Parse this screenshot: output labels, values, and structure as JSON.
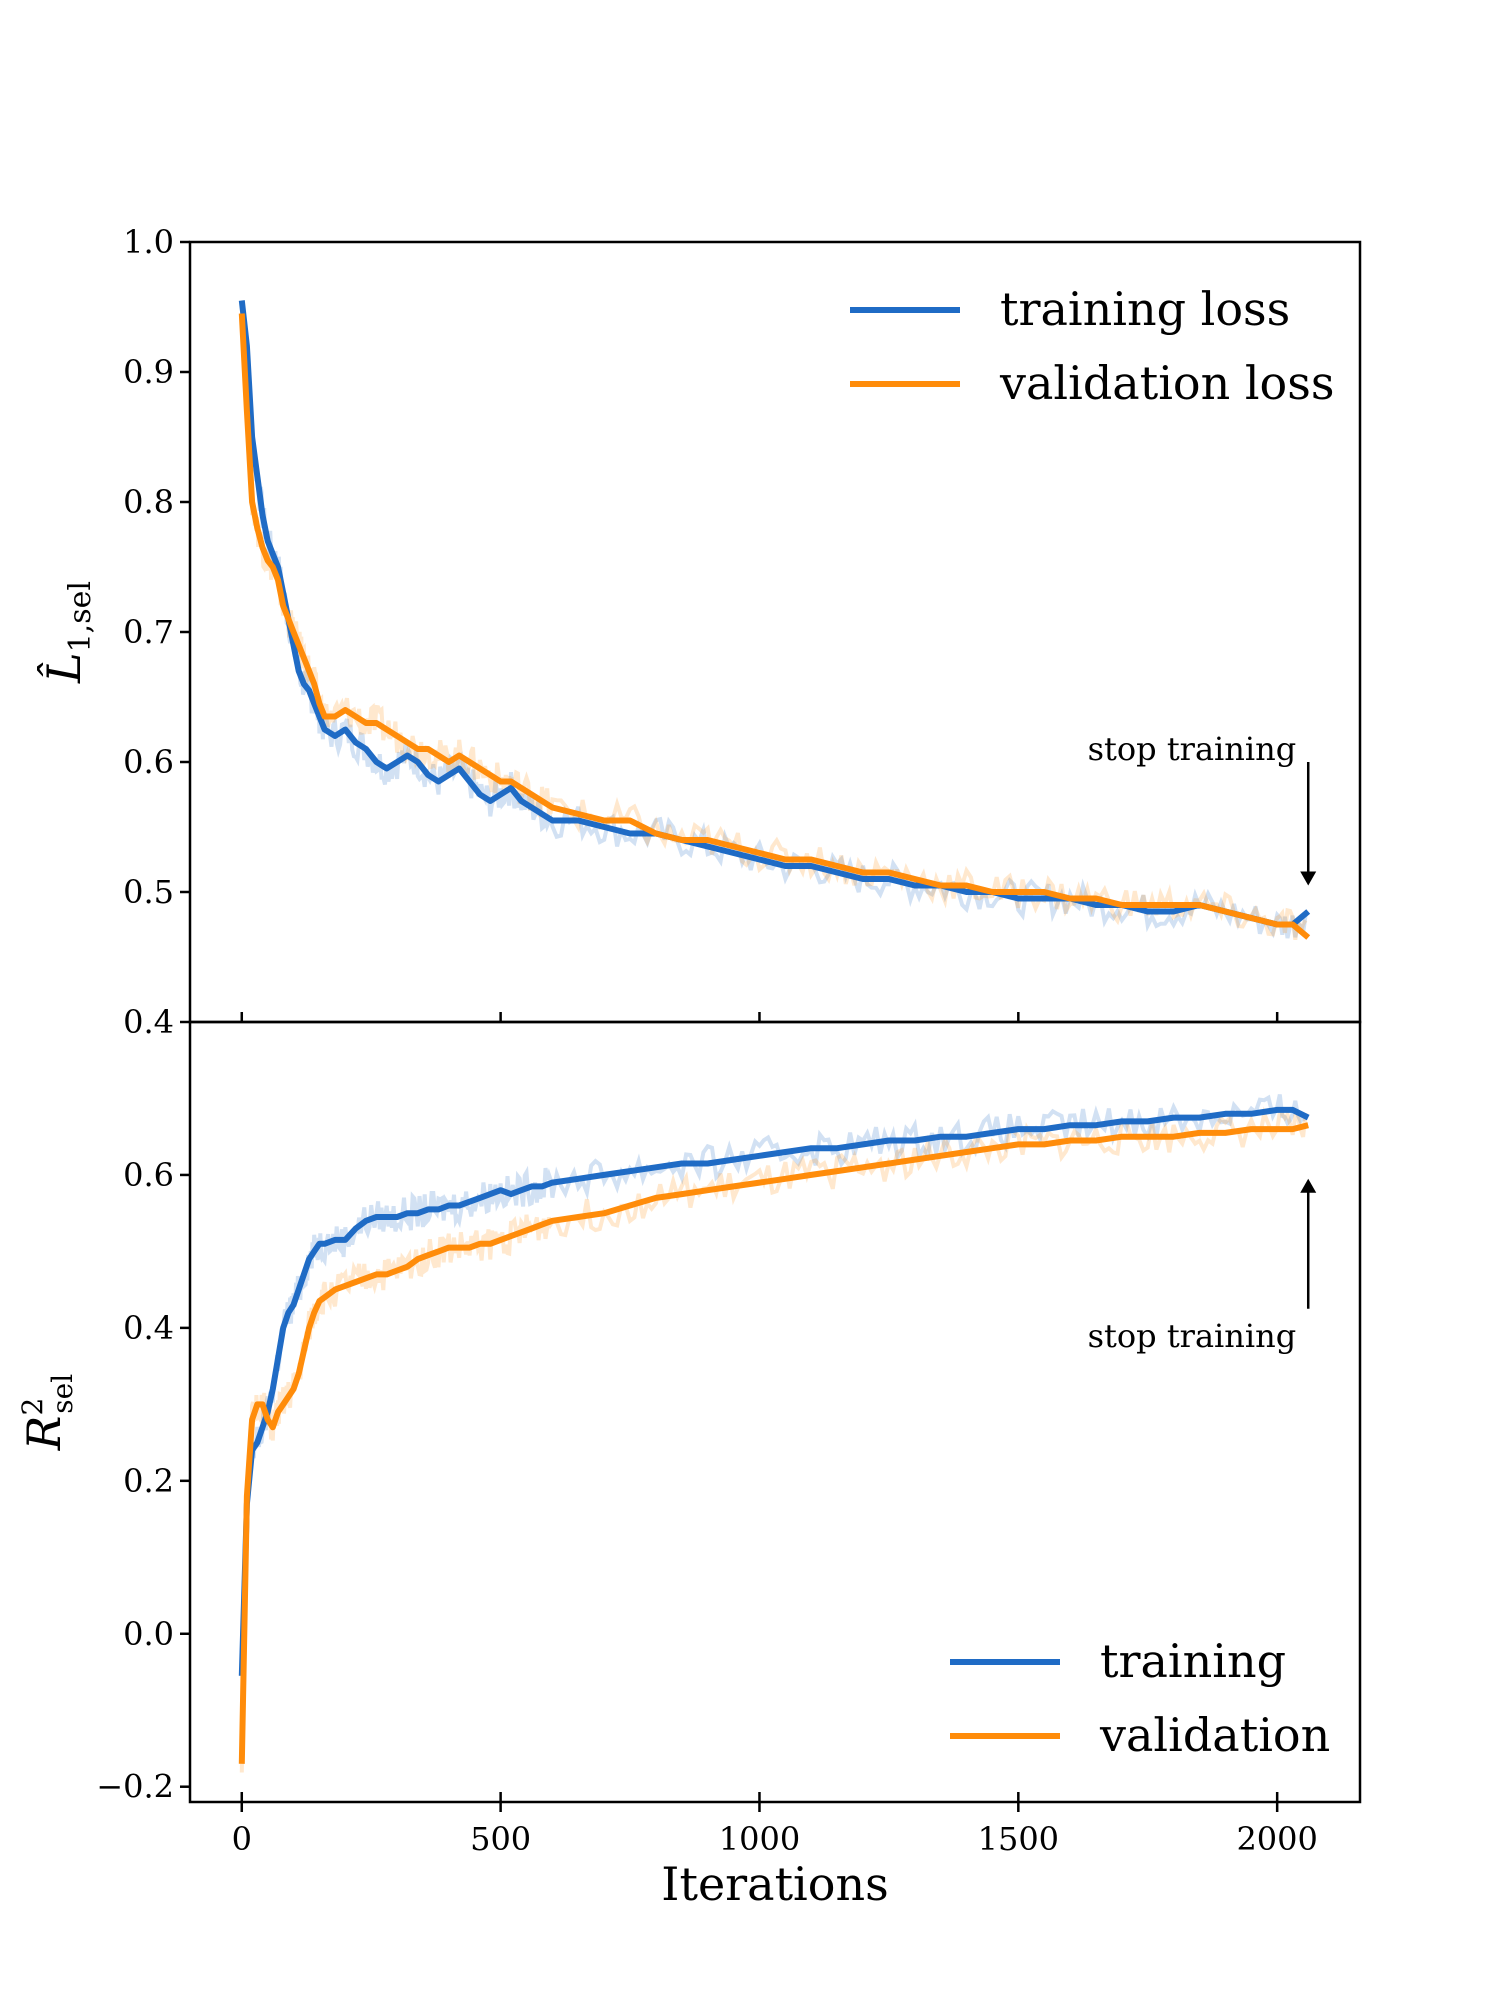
{
  "chart_data": [
    {
      "type": "line",
      "panel": "top",
      "ylabel_main": "L̂",
      "ylabel_sub": "1,sel",
      "xlabel": "",
      "xlim": [
        -100,
        2160
      ],
      "ylim": [
        0.4,
        1.0
      ],
      "yticks": [
        0.4,
        0.5,
        0.6,
        0.7,
        0.8,
        0.9,
        1.0
      ],
      "ytick_labels": [
        "0.4",
        "0.5",
        "0.6",
        "0.7",
        "0.8",
        "0.9",
        "1.0"
      ],
      "xticks": [
        0,
        500,
        1000,
        1500,
        2000
      ],
      "legend_position": "top-right",
      "annotation": {
        "text": "stop training",
        "x": 2060,
        "y_from": 0.6,
        "y_to": 0.505,
        "direction": "down"
      },
      "series": [
        {
          "name": "training loss",
          "color": "#1f6bc5",
          "x": [
            0,
            10,
            20,
            30,
            40,
            50,
            60,
            70,
            80,
            90,
            100,
            110,
            120,
            130,
            140,
            150,
            160,
            180,
            200,
            220,
            240,
            260,
            280,
            300,
            320,
            340,
            360,
            380,
            400,
            420,
            440,
            460,
            480,
            500,
            520,
            540,
            560,
            580,
            600,
            650,
            700,
            750,
            800,
            850,
            900,
            950,
            1000,
            1050,
            1100,
            1150,
            1200,
            1250,
            1300,
            1350,
            1400,
            1450,
            1500,
            1550,
            1600,
            1650,
            1700,
            1750,
            1800,
            1850,
            1900,
            1950,
            2000,
            2030,
            2060
          ],
          "values": [
            0.955,
            0.92,
            0.85,
            0.82,
            0.79,
            0.77,
            0.76,
            0.75,
            0.73,
            0.71,
            0.69,
            0.67,
            0.66,
            0.655,
            0.645,
            0.635,
            0.625,
            0.62,
            0.625,
            0.615,
            0.61,
            0.6,
            0.595,
            0.6,
            0.605,
            0.6,
            0.59,
            0.585,
            0.59,
            0.595,
            0.585,
            0.575,
            0.57,
            0.575,
            0.58,
            0.57,
            0.565,
            0.56,
            0.555,
            0.555,
            0.55,
            0.545,
            0.545,
            0.54,
            0.535,
            0.53,
            0.525,
            0.52,
            0.52,
            0.515,
            0.51,
            0.51,
            0.505,
            0.505,
            0.5,
            0.5,
            0.495,
            0.495,
            0.495,
            0.49,
            0.49,
            0.485,
            0.485,
            0.49,
            0.485,
            0.48,
            0.475,
            0.475,
            0.485
          ]
        },
        {
          "name": "validation loss",
          "color": "#ff8c0a",
          "x": [
            0,
            10,
            20,
            30,
            40,
            50,
            60,
            70,
            80,
            90,
            100,
            110,
            120,
            130,
            140,
            150,
            160,
            180,
            200,
            220,
            240,
            260,
            280,
            300,
            320,
            340,
            360,
            380,
            400,
            420,
            440,
            460,
            480,
            500,
            520,
            540,
            560,
            580,
            600,
            650,
            700,
            750,
            800,
            850,
            900,
            950,
            1000,
            1050,
            1100,
            1150,
            1200,
            1250,
            1300,
            1350,
            1400,
            1450,
            1500,
            1550,
            1600,
            1650,
            1700,
            1750,
            1800,
            1850,
            1900,
            1950,
            2000,
            2030,
            2060
          ],
          "values": [
            0.945,
            0.87,
            0.8,
            0.78,
            0.765,
            0.755,
            0.75,
            0.74,
            0.72,
            0.71,
            0.7,
            0.69,
            0.68,
            0.67,
            0.66,
            0.645,
            0.635,
            0.635,
            0.64,
            0.635,
            0.63,
            0.63,
            0.625,
            0.62,
            0.615,
            0.61,
            0.61,
            0.605,
            0.6,
            0.605,
            0.6,
            0.595,
            0.59,
            0.585,
            0.585,
            0.58,
            0.575,
            0.57,
            0.565,
            0.56,
            0.555,
            0.555,
            0.545,
            0.54,
            0.54,
            0.535,
            0.53,
            0.525,
            0.525,
            0.52,
            0.515,
            0.515,
            0.51,
            0.505,
            0.505,
            0.5,
            0.5,
            0.5,
            0.495,
            0.495,
            0.49,
            0.49,
            0.49,
            0.49,
            0.485,
            0.48,
            0.475,
            0.475,
            0.465
          ]
        }
      ]
    },
    {
      "type": "line",
      "panel": "bottom",
      "ylabel_main": "R",
      "ylabel_sup": "2",
      "ylabel_sub": "sel",
      "xlabel": "Iterations",
      "xlim": [
        -100,
        2160
      ],
      "ylim": [
        -0.22,
        0.8
      ],
      "yticks": [
        -0.2,
        0.0,
        0.2,
        0.4,
        0.6
      ],
      "ytick_labels": [
        "−0.2",
        "0.0",
        "0.2",
        "0.4",
        "0.6"
      ],
      "xticks": [
        0,
        500,
        1000,
        1500,
        2000
      ],
      "xtick_labels": [
        "0",
        "500",
        "1000",
        "1500",
        "2000"
      ],
      "legend_position": "bottom-right",
      "annotation": {
        "text": "stop training",
        "x": 2060,
        "y_from": 0.425,
        "y_to": 0.595,
        "direction": "up"
      },
      "series": [
        {
          "name": "training",
          "color": "#1f6bc5",
          "x": [
            0,
            10,
            20,
            30,
            40,
            50,
            60,
            70,
            80,
            90,
            100,
            110,
            120,
            130,
            140,
            150,
            160,
            180,
            200,
            220,
            240,
            260,
            280,
            300,
            320,
            340,
            360,
            380,
            400,
            420,
            440,
            460,
            480,
            500,
            520,
            540,
            560,
            580,
            600,
            650,
            700,
            750,
            800,
            850,
            900,
            950,
            1000,
            1050,
            1100,
            1150,
            1200,
            1250,
            1300,
            1350,
            1400,
            1450,
            1500,
            1550,
            1600,
            1650,
            1700,
            1750,
            1800,
            1850,
            1900,
            1950,
            2000,
            2030,
            2060
          ],
          "values": [
            -0.055,
            0.17,
            0.24,
            0.25,
            0.27,
            0.29,
            0.32,
            0.36,
            0.4,
            0.42,
            0.43,
            0.45,
            0.47,
            0.49,
            0.5,
            0.51,
            0.51,
            0.515,
            0.515,
            0.53,
            0.54,
            0.545,
            0.545,
            0.545,
            0.55,
            0.55,
            0.555,
            0.555,
            0.56,
            0.56,
            0.565,
            0.57,
            0.575,
            0.58,
            0.575,
            0.58,
            0.585,
            0.585,
            0.59,
            0.595,
            0.6,
            0.605,
            0.61,
            0.615,
            0.615,
            0.62,
            0.625,
            0.63,
            0.635,
            0.635,
            0.64,
            0.645,
            0.645,
            0.65,
            0.65,
            0.655,
            0.66,
            0.66,
            0.665,
            0.665,
            0.67,
            0.67,
            0.675,
            0.675,
            0.68,
            0.68,
            0.685,
            0.685,
            0.675
          ]
        },
        {
          "name": "validation",
          "color": "#ff8c0a",
          "x": [
            0,
            10,
            20,
            30,
            40,
            50,
            60,
            70,
            80,
            90,
            100,
            110,
            120,
            130,
            140,
            150,
            160,
            180,
            200,
            220,
            240,
            260,
            280,
            300,
            320,
            340,
            360,
            380,
            400,
            420,
            440,
            460,
            480,
            500,
            520,
            540,
            560,
            580,
            600,
            650,
            700,
            750,
            800,
            850,
            900,
            950,
            1000,
            1050,
            1100,
            1150,
            1200,
            1250,
            1300,
            1350,
            1400,
            1450,
            1500,
            1550,
            1600,
            1650,
            1700,
            1750,
            1800,
            1850,
            1900,
            1950,
            2000,
            2030,
            2060
          ],
          "values": [
            -0.17,
            0.18,
            0.28,
            0.3,
            0.3,
            0.28,
            0.27,
            0.29,
            0.3,
            0.31,
            0.32,
            0.34,
            0.37,
            0.4,
            0.42,
            0.435,
            0.44,
            0.45,
            0.455,
            0.46,
            0.465,
            0.47,
            0.47,
            0.475,
            0.48,
            0.49,
            0.495,
            0.5,
            0.505,
            0.505,
            0.505,
            0.51,
            0.51,
            0.515,
            0.52,
            0.525,
            0.53,
            0.535,
            0.54,
            0.545,
            0.55,
            0.56,
            0.57,
            0.575,
            0.58,
            0.585,
            0.59,
            0.595,
            0.6,
            0.605,
            0.61,
            0.615,
            0.62,
            0.625,
            0.63,
            0.635,
            0.64,
            0.64,
            0.645,
            0.645,
            0.65,
            0.65,
            0.65,
            0.655,
            0.655,
            0.66,
            0.66,
            0.66,
            0.665
          ]
        }
      ]
    }
  ]
}
